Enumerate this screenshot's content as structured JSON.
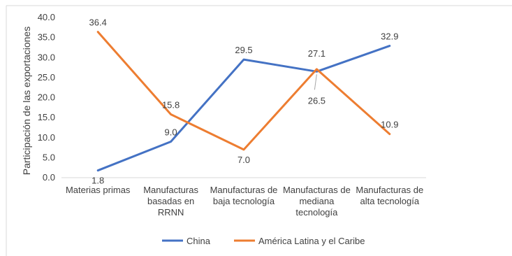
{
  "chart_data": {
    "type": "line",
    "title": "",
    "xlabel": "",
    "ylabel": "Participación de las exportaciones",
    "ylim": [
      0,
      40
    ],
    "yticks": [
      "0.0",
      "5.0",
      "10.0",
      "15.0",
      "20.0",
      "25.0",
      "30.0",
      "35.0",
      "40.0"
    ],
    "grid": false,
    "legend_position": "bottom",
    "categories": [
      [
        "Materias primas"
      ],
      [
        "Manufacturas",
        "basadas en",
        "RRNN"
      ],
      [
        "Manufacturas de",
        "baja tecnología"
      ],
      [
        "Manufacturas de",
        "mediana",
        "tecnología"
      ],
      [
        "Manufacturas de",
        "alta tecnología"
      ]
    ],
    "series": [
      {
        "name": "China",
        "color": "#4472C4",
        "values": [
          1.8,
          9.0,
          29.5,
          26.5,
          32.9
        ],
        "labels": [
          "1.8",
          "9.0",
          "29.5",
          "26.5",
          "32.9"
        ]
      },
      {
        "name": "América Latina y el Caribe",
        "color": "#ED7D31",
        "values": [
          36.4,
          15.8,
          7.0,
          27.1,
          10.9
        ],
        "labels": [
          "36.4",
          "15.8",
          "7.0",
          "27.1",
          "10.9"
        ]
      }
    ]
  }
}
